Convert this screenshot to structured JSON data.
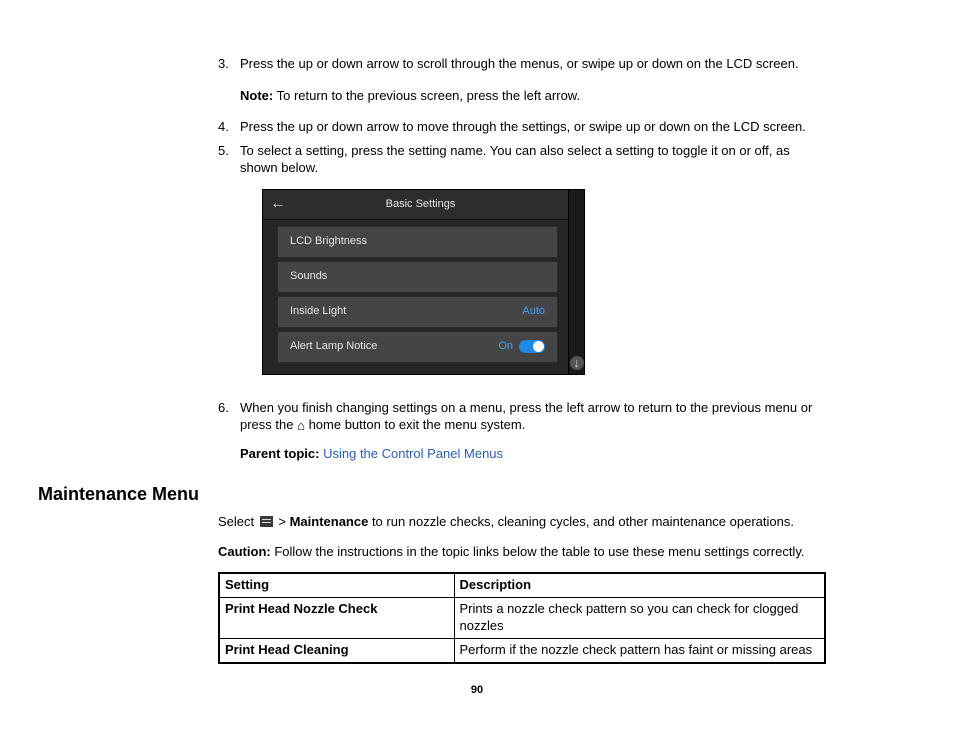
{
  "steps": {
    "s3": {
      "num": "3.",
      "text": "Press the up or down arrow to scroll through the menus, or swipe up or down on the LCD screen."
    },
    "s3_note_label": "Note:",
    "s3_note_text": " To return to the previous screen, press the left arrow.",
    "s4": {
      "num": "4.",
      "text": "Press the up or down arrow to move through the settings, or swipe up or down on the LCD screen."
    },
    "s5": {
      "num": "5.",
      "text": "To select a setting, press the setting name. You can also select a setting to toggle it on or off, as shown below."
    },
    "s6": {
      "num": "6.",
      "text_a": "When you finish changing settings on a menu, press the left arrow to return to the previous menu or press the ",
      "text_b": " home button to exit the menu system."
    }
  },
  "lcd": {
    "title": "Basic Settings",
    "back_glyph": "←",
    "rows": [
      {
        "label": "LCD Brightness",
        "value": ""
      },
      {
        "label": "Sounds",
        "value": ""
      },
      {
        "label": "Inside Light",
        "value": "Auto"
      },
      {
        "label": "Alert Lamp Notice",
        "value": "On",
        "toggle": true
      }
    ],
    "scroll_down_glyph": "↓",
    "colors": {
      "bg": "#262626",
      "header_bg": "#2d2d2d",
      "row_bg": "#454545",
      "text": "#e6e6e6",
      "value": "#3fa0ff",
      "toggle_on": "#1e88e5"
    }
  },
  "parent_topic": {
    "label": "Parent topic:",
    "link": "Using the Control Panel Menus"
  },
  "section_title": "Maintenance Menu",
  "intro": {
    "pre": "Select ",
    "sep": " > ",
    "maint": "Maintenance",
    "post": " to run nozzle checks, cleaning cycles, and other maintenance operations."
  },
  "caution": {
    "label": "Caution:",
    "text": " Follow the instructions in the topic links below the table to use these menu settings correctly."
  },
  "table": {
    "headers": [
      "Setting",
      "Description"
    ],
    "rows": [
      {
        "setting": "Print Head Nozzle Check",
        "desc": "Prints a nozzle check pattern so you can check for clogged nozzles"
      },
      {
        "setting": "Print Head Cleaning",
        "desc": "Perform if the nozzle check pattern has faint or missing areas"
      }
    ]
  },
  "home_glyph": "⌂",
  "page_number": "90"
}
